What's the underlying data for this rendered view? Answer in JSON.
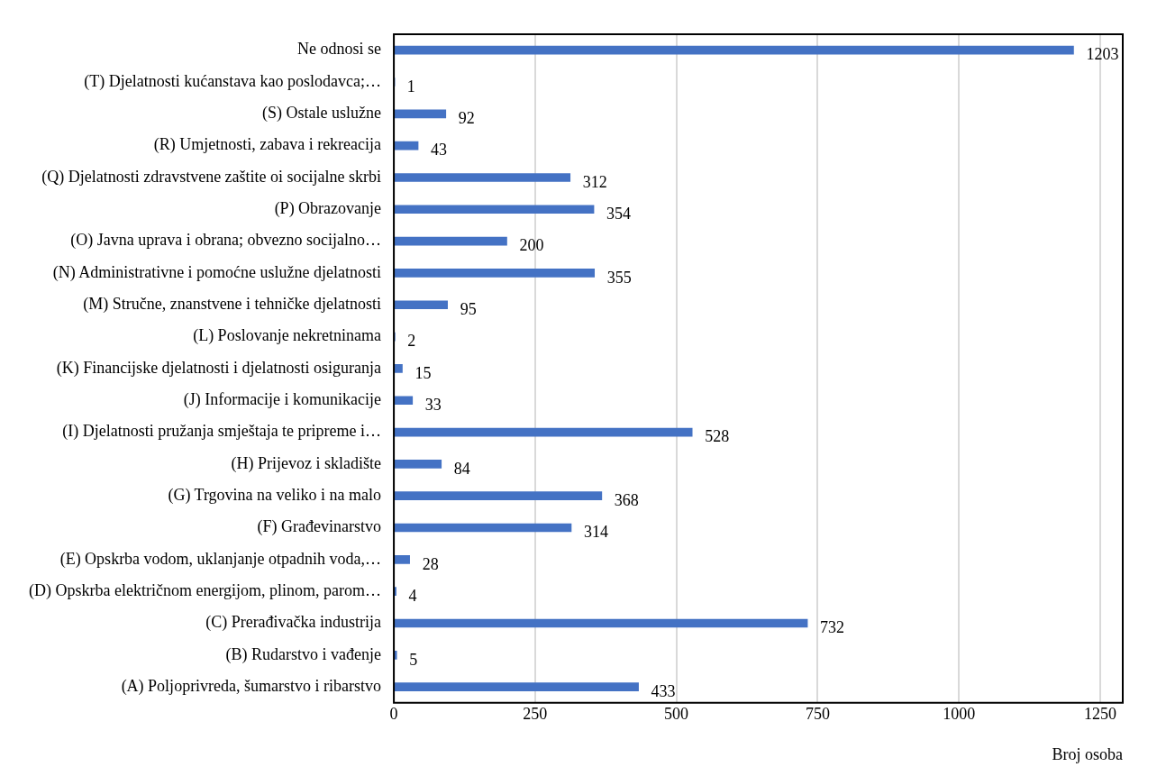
{
  "chart_data": {
    "type": "bar",
    "orientation": "horizontal",
    "xlabel": "Broj osoba",
    "categories": [
      "Ne odnosi se",
      "(T) Djelatnosti kućanstava kao poslodavca;…",
      "(S) Ostale uslužne",
      "(R) Umjetnosti, zabava i rekreacija",
      "(Q) Djelatnosti zdravstvene zaštite oi socijalne skrbi",
      "(P) Obrazovanje",
      "(O) Javna uprava i obrana; obvezno socijalno…",
      "(N) Administrativne i pomoćne uslužne djelatnosti",
      "(M) Stručne, znanstvene i tehničke djelatnosti",
      "(L) Poslovanje nekretninama",
      "(K) Financijske djelatnosti i djelatnosti osiguranja",
      "(J) Informacije i komunikacije",
      "(I) Djelatnosti pružanja smještaja te pripreme i…",
      "(H) Prijevoz i skladište",
      "(G) Trgovina na veliko i na malo",
      "(F) Građevinarstvo",
      "(E) Opskrba vodom, uklanjanje otpadnih voda,…",
      "(D) Opskrba električnom energijom, plinom, parom…",
      "(C) Prerađivačka industrija",
      "(B) Rudarstvo i vađenje",
      "(A) Poljoprivreda, šumarstvo i ribarstvo"
    ],
    "values": [
      1203,
      1,
      92,
      43,
      312,
      354,
      200,
      355,
      95,
      2,
      15,
      33,
      528,
      84,
      368,
      314,
      28,
      4,
      732,
      5,
      433
    ],
    "color": "#4472c4",
    "xlim": [
      0,
      1290
    ],
    "xticks": [
      0,
      250,
      500,
      750,
      1000,
      1250
    ],
    "grid": "x",
    "data_labels": true,
    "legend": false
  }
}
